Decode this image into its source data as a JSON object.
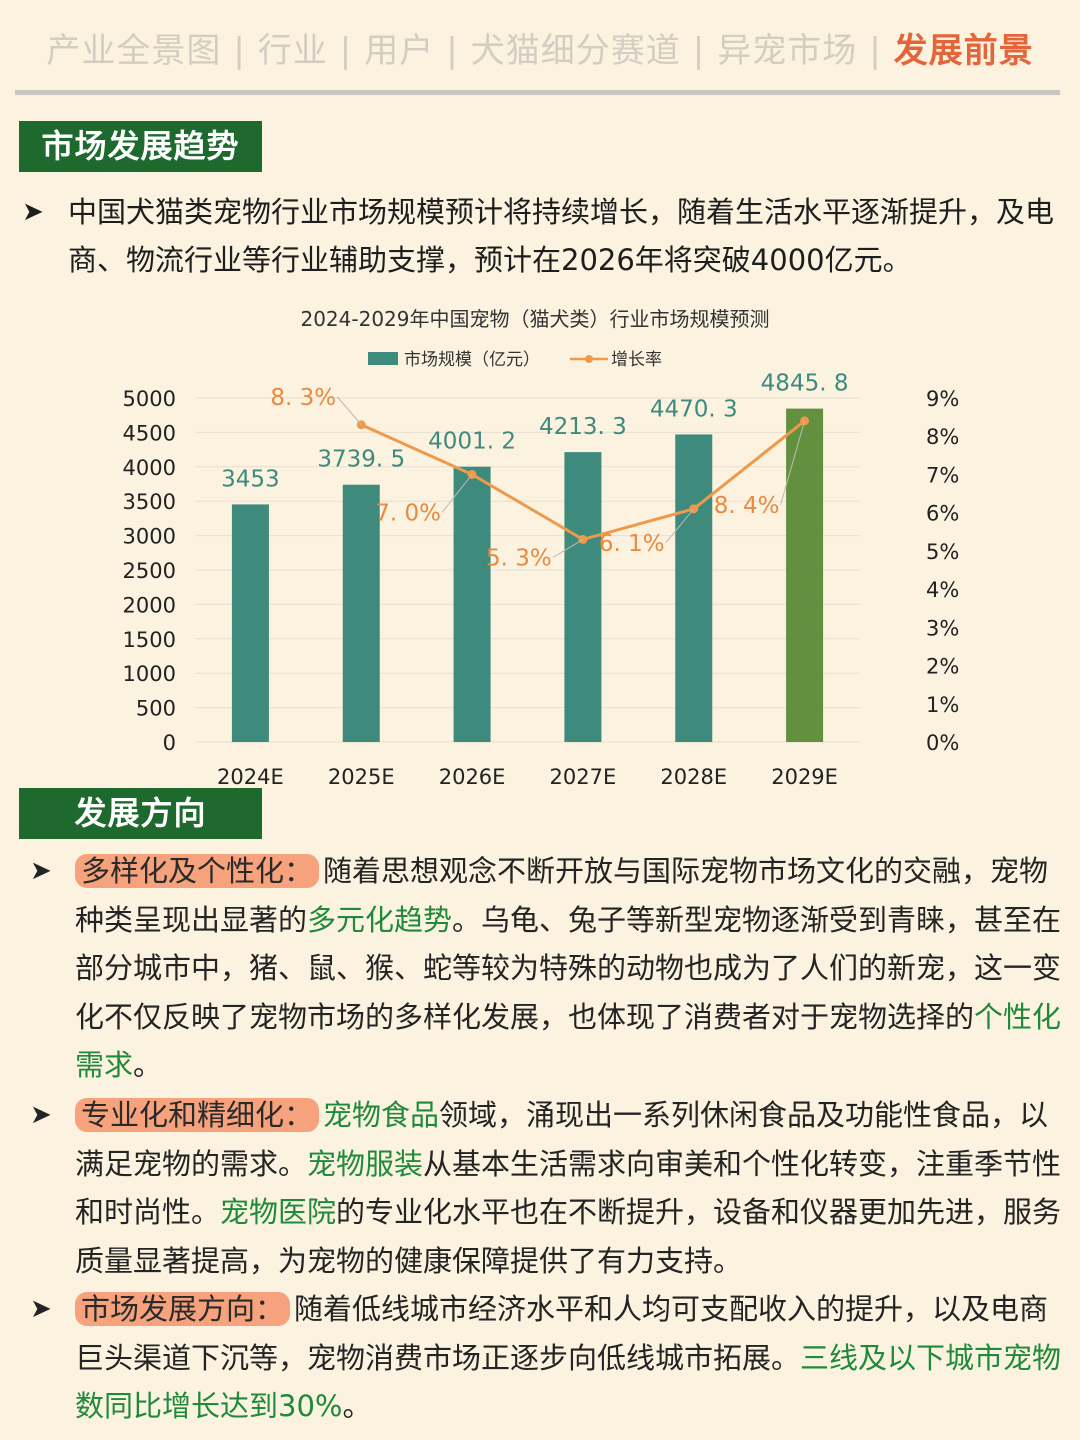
{
  "tabs": [
    "产业全景图",
    "行业",
    "用户",
    "犬猫细分赛道",
    "异宠市场",
    "发展前景"
  ],
  "section1": {
    "title": "市场发展趋势",
    "intro": "中国犬猫类宠物行业市场规模预计将持续增长，随着生活水平逐渐提升，及电商、物流行业等行业辅助支撑，预计在2026年将突破4000亿元。"
  },
  "chart_data": {
    "type": "bar",
    "title": "2024-2029年中国宠物（猫犬类）行业市场规模预测",
    "legend": [
      "市场规模（亿元）",
      "增长率"
    ],
    "legend_position": "top",
    "categories": [
      "2024E",
      "2025E",
      "2026E",
      "2027E",
      "2028E",
      "2029E"
    ],
    "series": [
      {
        "name": "市场规模（亿元）",
        "type": "bar",
        "axis": "left",
        "values": [
          3453,
          3739.5,
          4001.2,
          4213.3,
          4470.3,
          4845.8
        ],
        "labels": [
          "3453",
          "3739. 5",
          "4001. 2",
          "4213. 3",
          "4470. 3",
          "4845. 8"
        ]
      },
      {
        "name": "增长率",
        "type": "line",
        "axis": "right",
        "values": [
          null,
          8.3,
          7.0,
          5.3,
          6.1,
          8.4
        ],
        "labels": [
          "",
          "8. 3%",
          "7. 0%",
          "5. 3%",
          "6. 1%",
          "8. 4%"
        ]
      }
    ],
    "y_left": {
      "min": 0,
      "max": 5000,
      "ticks": [
        "5000",
        "4500",
        "4000",
        "3500",
        "3000",
        "2500",
        "2000",
        "1500",
        "1000",
        "500",
        "0"
      ]
    },
    "y_right": {
      "min": 0,
      "max": 9,
      "ticks": [
        "9%",
        "8%",
        "7%",
        "6%",
        "5%",
        "4%",
        "3%",
        "2%",
        "1%",
        "0%"
      ]
    },
    "grid": true,
    "colors": {
      "bar": "#3E8A7D",
      "bar_highlight": "#62903F",
      "line": "#EE9A4A",
      "label": "#E88A3F",
      "bar_label": "#3E8A7D"
    }
  },
  "section2": {
    "title": "发展方向",
    "items": [
      {
        "key": "多样化及个性化：",
        "parts": [
          {
            "t": "随着思想观念不断开放与国际宠物市场文化的交融，宠物种类呈现出显著的",
            "g": false
          },
          {
            "t": "多元化趋势",
            "g": true
          },
          {
            "t": "。乌龟、兔子等新型宠物逐渐受到青睐，甚至在部分城市中，猪、鼠、猴、蛇等较为特殊的动物也成为了人们的新宠，这一变化不仅反映了宠物市场的多样化发展，也体现了消费者对于宠物选择的",
            "g": false
          },
          {
            "t": "个性化需求",
            "g": true
          },
          {
            "t": "。",
            "g": false
          }
        ]
      },
      {
        "key": "专业化和精细化：",
        "parts": [
          {
            "t": "宠物食品",
            "g": true
          },
          {
            "t": "领域，涌现出一系列休闲食品及功能性食品，以满足宠物的需求。",
            "g": false
          },
          {
            "t": "宠物服装",
            "g": true
          },
          {
            "t": "从基本生活需求向审美和个性化转变，注重季节性和时尚性。",
            "g": false
          },
          {
            "t": "宠物医院",
            "g": true
          },
          {
            "t": "的专业化水平也在不断提升，设备和仪器更加先进，服务质量显著提高，为宠物的健康保障提供了有力支持。",
            "g": false
          }
        ]
      },
      {
        "key": "市场发展方向：",
        "parts": [
          {
            "t": "随着低线城市经济水平和人均可支配收入的提升，以及电商巨头渠道下沉等，宠物消费市场正逐步向低线城市拓展。",
            "g": false
          },
          {
            "t": "三线及以下城市宠物数同比增长达到30%",
            "g": true
          },
          {
            "t": "。",
            "g": false
          }
        ]
      }
    ]
  }
}
